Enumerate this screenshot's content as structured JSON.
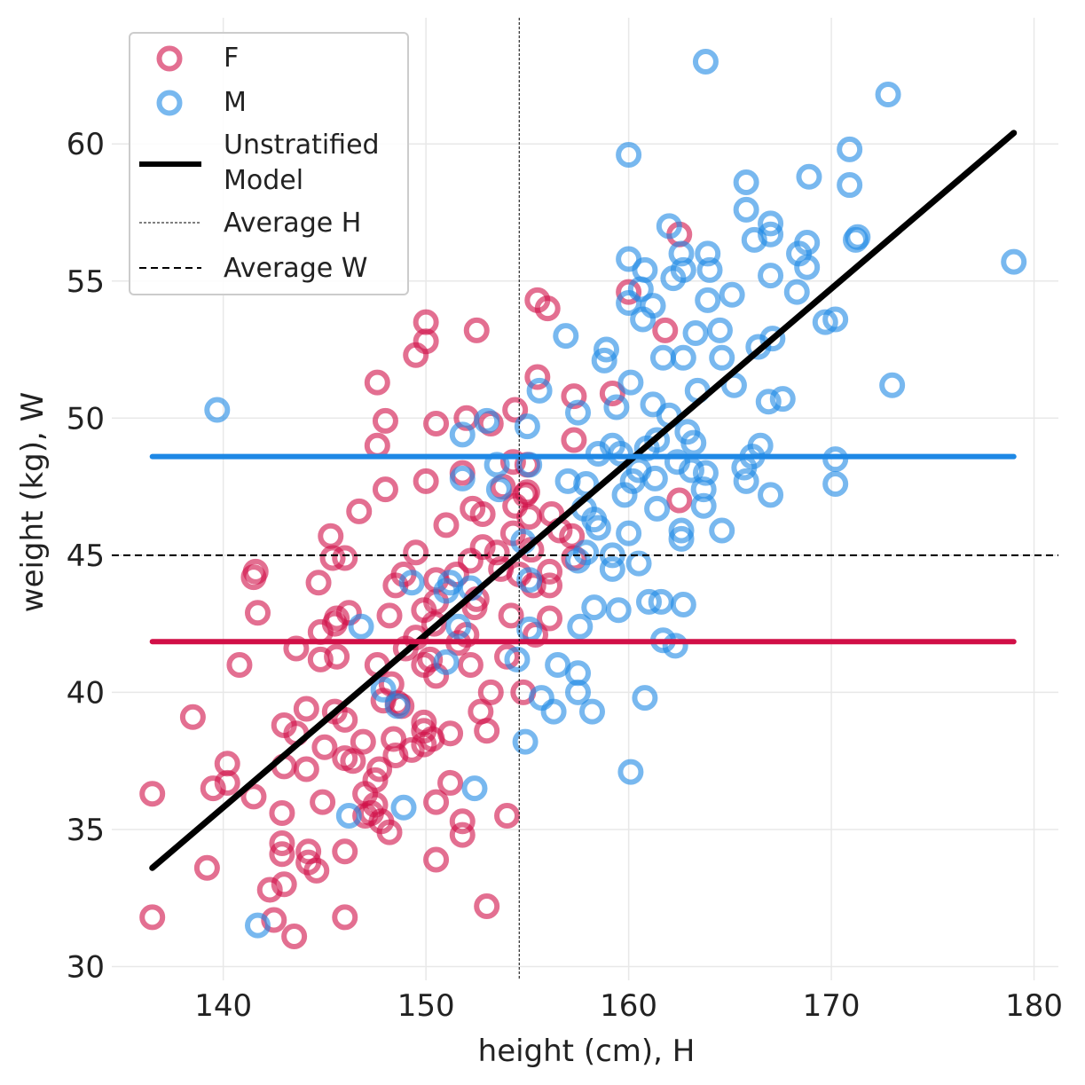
{
  "chart_data": {
    "type": "scatter",
    "title": "",
    "xlabel": "height (cm), H",
    "ylabel": "weight (kg), W",
    "xlim": [
      134.5,
      181.2
    ],
    "ylim": [
      29.5,
      64.6
    ],
    "xticks": [
      140,
      150,
      160,
      170,
      180
    ],
    "yticks": [
      30,
      35,
      40,
      45,
      50,
      55,
      60
    ],
    "grid": true,
    "legend_position": "top-left",
    "colors": {
      "F": "#d10f47",
      "M": "#1e88e5",
      "model": "#000000",
      "avg": "#000000"
    },
    "series": [
      {
        "name": "F",
        "kind": "scatter",
        "points": [
          [
            136.5,
            36.3
          ],
          [
            136.5,
            31.8
          ],
          [
            138.5,
            39.1
          ],
          [
            139.2,
            33.6
          ],
          [
            139.5,
            36.5
          ],
          [
            140.2,
            37.4
          ],
          [
            140.2,
            36.7
          ],
          [
            140.8,
            41.0
          ],
          [
            141.5,
            36.2
          ],
          [
            141.5,
            44.2
          ],
          [
            141.6,
            44.4
          ],
          [
            141.7,
            42.9
          ],
          [
            142.3,
            32.8
          ],
          [
            142.5,
            31.7
          ],
          [
            142.9,
            35.6
          ],
          [
            142.9,
            34.5
          ],
          [
            142.9,
            34.1
          ],
          [
            143.0,
            37.3
          ],
          [
            143.0,
            33.0
          ],
          [
            143.0,
            38.8
          ],
          [
            143.5,
            31.1
          ],
          [
            143.6,
            38.5
          ],
          [
            143.6,
            41.6
          ],
          [
            144.1,
            39.4
          ],
          [
            144.1,
            37.2
          ],
          [
            144.2,
            34.2
          ],
          [
            144.2,
            33.8
          ],
          [
            144.6,
            33.5
          ],
          [
            144.7,
            44.0
          ],
          [
            144.8,
            41.2
          ],
          [
            144.8,
            42.2
          ],
          [
            144.9,
            36.0
          ],
          [
            145.0,
            38.0
          ],
          [
            145.3,
            45.7
          ],
          [
            145.4,
            44.9
          ],
          [
            145.5,
            39.3
          ],
          [
            145.5,
            42.5
          ],
          [
            145.6,
            41.3
          ],
          [
            145.6,
            42.7
          ],
          [
            146.0,
            37.6
          ],
          [
            146.0,
            34.2
          ],
          [
            146.0,
            39.0
          ],
          [
            146.0,
            44.9
          ],
          [
            146.0,
            31.8
          ],
          [
            146.2,
            42.9
          ],
          [
            146.4,
            37.5
          ],
          [
            146.7,
            46.6
          ],
          [
            146.9,
            38.2
          ],
          [
            147.0,
            35.5
          ],
          [
            147.0,
            36.3
          ],
          [
            147.3,
            35.6
          ],
          [
            147.5,
            36.8
          ],
          [
            147.5,
            35.9
          ],
          [
            147.6,
            41.0
          ],
          [
            147.6,
            49.0
          ],
          [
            147.6,
            51.3
          ],
          [
            147.7,
            37.2
          ],
          [
            147.8,
            35.3
          ],
          [
            147.9,
            39.7
          ],
          [
            148.2,
            34.9
          ],
          [
            148.0,
            47.4
          ],
          [
            148.0,
            49.9
          ],
          [
            148.2,
            42.8
          ],
          [
            148.3,
            40.3
          ],
          [
            148.4,
            38.3
          ],
          [
            148.5,
            37.7
          ],
          [
            148.5,
            43.9
          ],
          [
            148.6,
            39.6
          ],
          [
            148.8,
            39.5
          ],
          [
            148.9,
            44.3
          ],
          [
            149.0,
            41.6
          ],
          [
            149.3,
            37.9
          ],
          [
            149.5,
            42.0
          ],
          [
            149.5,
            45.1
          ],
          [
            149.5,
            52.3
          ],
          [
            149.9,
            38.1
          ],
          [
            149.9,
            38.6
          ],
          [
            149.9,
            38.9
          ],
          [
            149.9,
            41.0
          ],
          [
            149.9,
            43.0
          ],
          [
            150.0,
            52.8
          ],
          [
            150.0,
            53.5
          ],
          [
            150.0,
            47.7
          ],
          [
            150.2,
            41.2
          ],
          [
            150.3,
            38.3
          ],
          [
            150.4,
            42.5
          ],
          [
            150.5,
            40.6
          ],
          [
            150.5,
            44.1
          ],
          [
            150.5,
            43.3
          ],
          [
            150.5,
            49.8
          ],
          [
            150.5,
            36.0
          ],
          [
            150.5,
            33.9
          ],
          [
            151.0,
            46.1
          ],
          [
            151.2,
            38.5
          ],
          [
            151.2,
            36.7
          ],
          [
            151.5,
            44.3
          ],
          [
            151.6,
            41.8
          ],
          [
            151.8,
            35.3
          ],
          [
            151.8,
            34.8
          ],
          [
            151.8,
            48.0
          ],
          [
            152.0,
            50.0
          ],
          [
            152.0,
            42.1
          ],
          [
            152.2,
            41.0
          ],
          [
            152.2,
            44.8
          ],
          [
            152.3,
            46.7
          ],
          [
            152.4,
            43.1
          ],
          [
            152.5,
            53.2
          ],
          [
            152.5,
            43.4
          ],
          [
            152.7,
            39.3
          ],
          [
            152.8,
            46.5
          ],
          [
            152.8,
            45.3
          ],
          [
            153.0,
            32.2
          ],
          [
            153.0,
            38.6
          ],
          [
            153.2,
            40.0
          ],
          [
            153.2,
            49.8
          ],
          [
            153.5,
            45.1
          ],
          [
            153.7,
            44.5
          ],
          [
            153.8,
            47.5
          ],
          [
            154.0,
            35.5
          ],
          [
            154.0,
            41.3
          ],
          [
            154.2,
            42.8
          ],
          [
            154.3,
            45.8
          ],
          [
            154.3,
            48.4
          ],
          [
            154.4,
            50.3
          ],
          [
            154.4,
            46.8
          ],
          [
            154.6,
            44.3
          ],
          [
            154.8,
            40.0
          ],
          [
            154.9,
            47.2
          ],
          [
            155.0,
            48.3
          ],
          [
            155.0,
            47.3
          ],
          [
            155.1,
            46.4
          ],
          [
            155.2,
            45.2
          ],
          [
            155.3,
            43.9
          ],
          [
            155.4,
            42.1
          ],
          [
            155.5,
            51.5
          ],
          [
            155.5,
            54.3
          ],
          [
            156.0,
            54.0
          ],
          [
            156.1,
            44.4
          ],
          [
            156.1,
            43.9
          ],
          [
            156.1,
            42.7
          ],
          [
            156.2,
            46.5
          ],
          [
            156.6,
            45.9
          ],
          [
            157.2,
            45.7
          ],
          [
            157.3,
            44.9
          ],
          [
            157.3,
            49.2
          ],
          [
            157.3,
            50.8
          ],
          [
            159.2,
            50.9
          ],
          [
            160.0,
            54.6
          ],
          [
            161.8,
            53.2
          ],
          [
            162.5,
            56.7
          ],
          [
            162.5,
            47.0
          ]
        ]
      },
      {
        "name": "M",
        "kind": "scatter",
        "points": [
          [
            139.7,
            50.3
          ],
          [
            141.7,
            31.5
          ],
          [
            146.2,
            35.5
          ],
          [
            146.8,
            42.4
          ],
          [
            147.9,
            40.1
          ],
          [
            148.6,
            39.5
          ],
          [
            148.9,
            35.8
          ],
          [
            149.3,
            44.0
          ],
          [
            151.0,
            43.7
          ],
          [
            151.0,
            41.1
          ],
          [
            151.2,
            44.0
          ],
          [
            151.6,
            42.4
          ],
          [
            151.8,
            47.8
          ],
          [
            151.8,
            49.4
          ],
          [
            152.2,
            43.8
          ],
          [
            152.4,
            36.5
          ],
          [
            153.0,
            49.9
          ],
          [
            153.5,
            48.3
          ],
          [
            153.6,
            47.4
          ],
          [
            154.5,
            41.2
          ],
          [
            154.8,
            45.5
          ],
          [
            154.9,
            38.2
          ],
          [
            155.0,
            49.7
          ],
          [
            155.1,
            44.1
          ],
          [
            155.1,
            42.3
          ],
          [
            155.1,
            48.3
          ],
          [
            155.6,
            51.0
          ],
          [
            155.7,
            39.8
          ],
          [
            156.3,
            39.3
          ],
          [
            156.5,
            41.0
          ],
          [
            156.9,
            53.0
          ],
          [
            157.0,
            47.7
          ],
          [
            157.5,
            40.7
          ],
          [
            157.5,
            40.0
          ],
          [
            157.5,
            44.8
          ],
          [
            157.5,
            50.2
          ],
          [
            157.6,
            42.4
          ],
          [
            157.8,
            46.7
          ],
          [
            157.9,
            45.1
          ],
          [
            157.9,
            47.6
          ],
          [
            158.2,
            39.3
          ],
          [
            158.3,
            46.3
          ],
          [
            158.3,
            43.1
          ],
          [
            158.5,
            48.7
          ],
          [
            158.5,
            46.0
          ],
          [
            158.8,
            52.1
          ],
          [
            158.9,
            52.5
          ],
          [
            159.2,
            49.0
          ],
          [
            159.2,
            45.0
          ],
          [
            159.2,
            44.5
          ],
          [
            159.4,
            50.4
          ],
          [
            159.5,
            43.0
          ],
          [
            159.6,
            48.7
          ],
          [
            159.8,
            47.2
          ],
          [
            160.0,
            45.8
          ],
          [
            160.1,
            51.3
          ],
          [
            160.1,
            37.1
          ],
          [
            160.0,
            59.6
          ],
          [
            160.0,
            55.8
          ],
          [
            160.0,
            54.2
          ],
          [
            160.2,
            47.7
          ],
          [
            160.5,
            48.1
          ],
          [
            160.5,
            44.7
          ],
          [
            160.6,
            54.7
          ],
          [
            160.7,
            53.6
          ],
          [
            160.8,
            39.8
          ],
          [
            160.8,
            55.4
          ],
          [
            160.9,
            48.9
          ],
          [
            161.0,
            43.3
          ],
          [
            161.2,
            54.1
          ],
          [
            161.2,
            50.5
          ],
          [
            161.3,
            47.8
          ],
          [
            161.4,
            49.2
          ],
          [
            161.4,
            46.7
          ],
          [
            161.6,
            43.3
          ],
          [
            161.7,
            41.9
          ],
          [
            161.7,
            52.2
          ],
          [
            162.0,
            50.1
          ],
          [
            162.0,
            57.0
          ],
          [
            162.2,
            55.1
          ],
          [
            162.3,
            41.7
          ],
          [
            162.4,
            48.4
          ],
          [
            162.6,
            56.0
          ],
          [
            162.7,
            55.4
          ],
          [
            162.7,
            52.2
          ],
          [
            162.6,
            45.9
          ],
          [
            162.6,
            45.6
          ],
          [
            162.7,
            43.2
          ],
          [
            162.9,
            49.5
          ],
          [
            163.1,
            48.1
          ],
          [
            163.2,
            49.1
          ],
          [
            163.3,
            53.1
          ],
          [
            163.4,
            51.0
          ],
          [
            163.7,
            47.4
          ],
          [
            163.7,
            46.8
          ],
          [
            163.8,
            48.0
          ],
          [
            163.9,
            54.3
          ],
          [
            163.9,
            56.0
          ],
          [
            164.0,
            55.4
          ],
          [
            163.8,
            63.0
          ],
          [
            164.5,
            53.2
          ],
          [
            164.6,
            52.2
          ],
          [
            164.6,
            45.9
          ],
          [
            165.1,
            54.5
          ],
          [
            165.2,
            51.2
          ],
          [
            165.7,
            48.2
          ],
          [
            165.8,
            47.7
          ],
          [
            165.8,
            57.6
          ],
          [
            165.8,
            58.6
          ],
          [
            166.1,
            48.6
          ],
          [
            166.2,
            56.5
          ],
          [
            166.4,
            52.6
          ],
          [
            166.5,
            49.0
          ],
          [
            166.9,
            50.6
          ],
          [
            167.0,
            47.2
          ],
          [
            167.0,
            57.1
          ],
          [
            167.0,
            56.7
          ],
          [
            167.0,
            55.2
          ],
          [
            167.1,
            52.9
          ],
          [
            167.6,
            50.7
          ],
          [
            168.3,
            54.6
          ],
          [
            168.4,
            56.0
          ],
          [
            168.8,
            56.4
          ],
          [
            168.8,
            55.5
          ],
          [
            168.9,
            58.8
          ],
          [
            169.7,
            53.5
          ],
          [
            170.2,
            53.6
          ],
          [
            170.2,
            48.5
          ],
          [
            170.2,
            47.6
          ],
          [
            170.9,
            59.8
          ],
          [
            170.9,
            58.5
          ],
          [
            171.2,
            56.5
          ],
          [
            171.3,
            56.6
          ],
          [
            172.8,
            61.8
          ],
          [
            173.0,
            51.2
          ],
          [
            179.0,
            55.7
          ]
        ]
      },
      {
        "name": "Unstratified\nModel",
        "kind": "line",
        "x": [
          136.5,
          179.0
        ],
        "y": [
          33.6,
          60.4
        ]
      },
      {
        "name": "F mean W",
        "kind": "hline",
        "y": 41.85,
        "x": [
          136.5,
          179.0
        ]
      },
      {
        "name": "M mean W",
        "kind": "hline",
        "y": 48.6,
        "x": [
          136.5,
          179.0
        ]
      },
      {
        "name": "Average H",
        "kind": "vline",
        "x": 154.6
      },
      {
        "name": "Average W",
        "kind": "hline-dashed",
        "y": 45.0
      }
    ],
    "legend": [
      {
        "label": "F",
        "style": "marker-F"
      },
      {
        "label": "M",
        "style": "marker-M"
      },
      {
        "label": "Unstratified",
        "label2": "Model",
        "style": "thick-line"
      },
      {
        "label": "Average H",
        "style": "dotted-line"
      },
      {
        "label": "Average W",
        "style": "dashed-line"
      }
    ]
  }
}
